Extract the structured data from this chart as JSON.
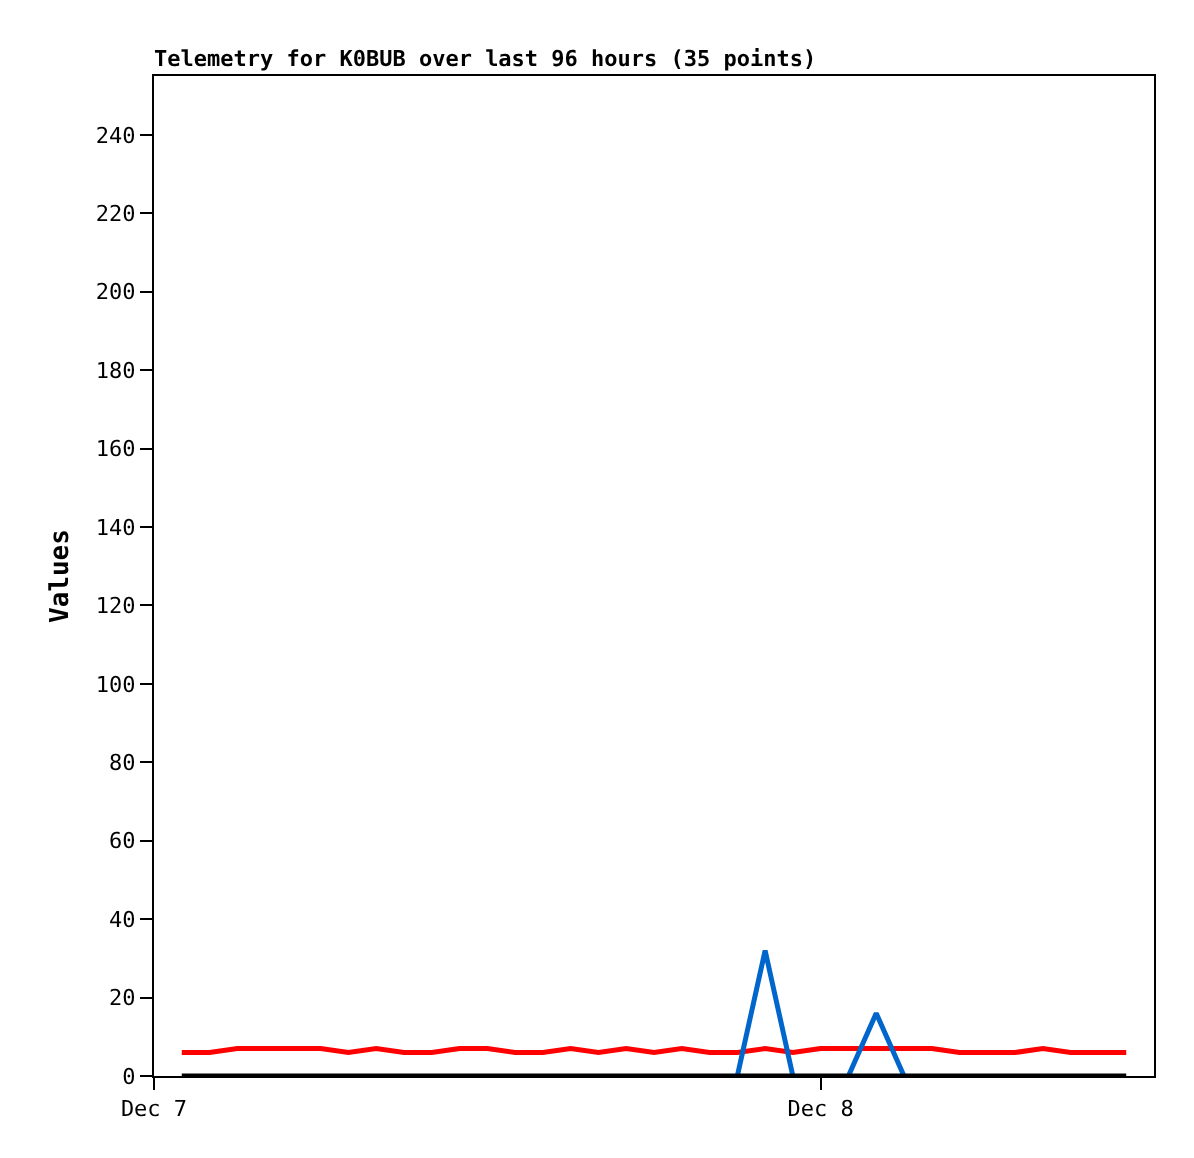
{
  "chart_data": {
    "type": "line",
    "title": "Telemetry for K0BUB over last 96 hours (35 points)",
    "ylabel": "Values",
    "x": [
      "--12-07T01:00",
      "--12-07T02:00",
      "--12-07T03:00",
      "--12-07T04:00",
      "--12-07T05:00",
      "--12-07T06:00",
      "--12-07T07:00",
      "--12-07T08:00",
      "--12-07T09:00",
      "--12-07T10:00",
      "--12-07T11:00",
      "--12-07T12:00",
      "--12-07T13:00",
      "--12-07T14:00",
      "--12-07T15:00",
      "--12-07T16:00",
      "--12-07T17:00",
      "--12-07T18:00",
      "--12-07T19:00",
      "--12-07T20:00",
      "--12-07T21:00",
      "--12-07T22:00",
      "--12-07T23:00",
      "--12-08T00:00",
      "--12-08T01:00",
      "--12-08T02:00",
      "--12-08T03:00",
      "--12-08T04:00",
      "--12-08T05:00",
      "--12-08T06:00",
      "--12-08T07:00",
      "--12-08T08:00",
      "--12-08T09:00",
      "--12-08T10:00",
      "--12-08T11:00"
    ],
    "series": [
      {
        "color": "#ff0000",
        "values": [
          6,
          6,
          7,
          7,
          7,
          7,
          6,
          7,
          6,
          6,
          7,
          7,
          6,
          6,
          7,
          6,
          7,
          6,
          7,
          6,
          6,
          7,
          6,
          7,
          7,
          7,
          7,
          7,
          6,
          6,
          6,
          7,
          6,
          6,
          6
        ]
      },
      {
        "color": "#0066cc",
        "values": [
          null,
          null,
          null,
          null,
          null,
          null,
          null,
          null,
          null,
          null,
          null,
          null,
          null,
          null,
          null,
          null,
          null,
          null,
          null,
          null,
          0,
          32,
          0,
          null,
          0,
          16,
          0,
          null,
          null,
          null,
          null,
          null,
          null,
          null,
          null
        ]
      },
      {
        "color": "#000000",
        "values": [
          0,
          0,
          0,
          0,
          0,
          0,
          0,
          0,
          0,
          0,
          0,
          0,
          0,
          0,
          0,
          0,
          0,
          0,
          0,
          0,
          0,
          0,
          0,
          0,
          0,
          0,
          0,
          0,
          0,
          0,
          0,
          0,
          0,
          0,
          0
        ]
      }
    ],
    "xlim": [
      "--12-07T00:00",
      "--12-08T12:00"
    ],
    "xticks": [
      {
        "value": "--12-07T00:00",
        "label": "Dec 7"
      },
      {
        "value": "--12-08T00:00",
        "label": "Dec 8"
      }
    ],
    "ylim": [
      0,
      255
    ],
    "yticks": [
      0,
      20,
      40,
      60,
      80,
      100,
      120,
      140,
      160,
      180,
      200,
      220,
      240
    ],
    "marker": "none",
    "line_style": "solid"
  }
}
